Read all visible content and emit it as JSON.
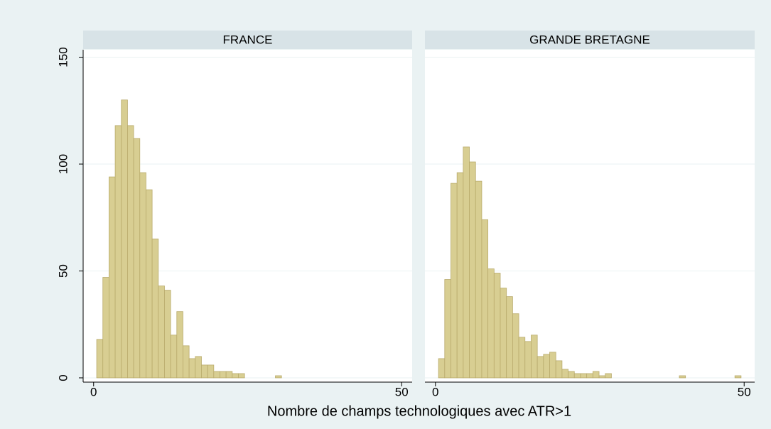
{
  "chart_data": {
    "type": "histogram",
    "x_label": "Nombre de champs technologiques avec ATR>1",
    "color": "#d8ce92",
    "edge_color": "#b9ab6c",
    "grid": true,
    "xlim": [
      -1.7,
      51.7
    ],
    "xticks": [
      0,
      50
    ],
    "ylim": [
      -2,
      153.5
    ],
    "yticks": [
      0,
      50,
      100,
      150
    ],
    "panels": [
      {
        "title": "FRANCE",
        "bins": [
          0.5,
          1.5,
          2.5,
          3.5,
          4.5,
          5.5,
          6.5,
          7.5,
          8.5,
          9.5,
          10.5,
          11.5,
          12.5,
          13.5,
          14.5,
          15.5,
          16.5,
          17.5,
          18.5,
          19.5,
          20.5,
          21.5,
          22.5,
          23.5,
          24.5,
          25.5,
          26.5,
          27.5,
          28.5,
          29.5,
          30.5
        ],
        "counts": [
          18,
          47,
          94,
          118,
          130,
          118,
          112,
          96,
          88,
          65,
          43,
          41,
          20,
          31,
          15,
          9,
          10,
          6,
          6,
          3,
          3,
          3,
          2,
          2,
          0,
          0,
          0,
          0,
          0,
          1
        ]
      },
      {
        "title": "GRANDE BRETAGNE",
        "bins": [
          0.5,
          1.5,
          2.5,
          3.5,
          4.5,
          5.5,
          6.5,
          7.5,
          8.5,
          9.5,
          10.5,
          11.5,
          12.5,
          13.5,
          14.5,
          15.5,
          16.5,
          17.5,
          18.5,
          19.5,
          20.5,
          21.5,
          22.5,
          23.5,
          24.5,
          25.5,
          26.5,
          27.5,
          28.5,
          29.5,
          30.5,
          31.5,
          32.5,
          33.5,
          34.5,
          35.5,
          36.5,
          37.5,
          38.5,
          39.5,
          40.5,
          41.5,
          42.5,
          43.5,
          44.5,
          45.5,
          46.5,
          47.5,
          48.5,
          49.5
        ],
        "counts": [
          9,
          46,
          91,
          96,
          108,
          101,
          92,
          74,
          51,
          49,
          42,
          38,
          30,
          19,
          17,
          20,
          10,
          11,
          12,
          8,
          4,
          3,
          2,
          2,
          2,
          3,
          1,
          2,
          0,
          0,
          0,
          0,
          0,
          0,
          0,
          0,
          0,
          0,
          0,
          1,
          0,
          0,
          0,
          0,
          0,
          0,
          0,
          0,
          1
        ]
      }
    ]
  }
}
